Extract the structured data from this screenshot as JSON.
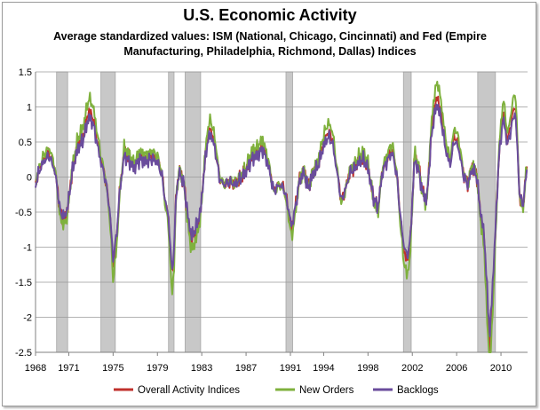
{
  "chart_data": {
    "type": "line",
    "title": "U.S. Economic Activity",
    "subtitle": "Average standardized values: ISM (National, Chicago, Cincinnati) and Fed (Empire Manufacturing, Philadelphia, Richmond, Dallas) Indices",
    "xlabel": "",
    "ylabel": "",
    "xlim": [
      1968,
      2012.4
    ],
    "ylim": [
      -2.5,
      1.5
    ],
    "xticks": [
      1968,
      1971,
      1975,
      1979,
      1983,
      1987,
      1991,
      1994,
      1998,
      2002,
      2006,
      2010
    ],
    "yticks": [
      -2.5,
      -2,
      -1.5,
      -1,
      -0.5,
      0,
      0.5,
      1,
      1.5
    ],
    "ytick_labels": [
      "-2.5",
      "-2",
      "-1.5",
      "-1",
      "-0.5",
      "0",
      "0.5",
      "1",
      "1.5"
    ],
    "grid": "horizontal",
    "legend": "bottom",
    "recessions": [
      [
        1969.9,
        1970.9
      ],
      [
        1973.9,
        1975.2
      ],
      [
        1980.0,
        1980.5
      ],
      [
        1981.5,
        1982.9
      ],
      [
        1990.6,
        1991.2
      ],
      [
        2001.2,
        2001.9
      ],
      [
        2007.9,
        2009.5
      ]
    ],
    "anchors": [
      [
        1968.0,
        -0.1
      ],
      [
        1968.3,
        0.1
      ],
      [
        1968.7,
        0.25
      ],
      [
        1969.2,
        0.35
      ],
      [
        1969.6,
        0.2
      ],
      [
        1969.9,
        -0.05
      ],
      [
        1970.2,
        -0.5
      ],
      [
        1970.6,
        -0.6
      ],
      [
        1970.9,
        -0.45
      ],
      [
        1971.3,
        0.1
      ],
      [
        1971.8,
        0.45
      ],
      [
        1972.3,
        0.6
      ],
      [
        1972.8,
        0.95
      ],
      [
        1973.2,
        0.85
      ],
      [
        1973.6,
        0.5
      ],
      [
        1973.9,
        0.25
      ],
      [
        1974.3,
        0.0
      ],
      [
        1974.7,
        -0.5
      ],
      [
        1975.0,
        -1.25
      ],
      [
        1975.3,
        -0.9
      ],
      [
        1975.6,
        -0.2
      ],
      [
        1976.0,
        0.35
      ],
      [
        1976.5,
        0.25
      ],
      [
        1976.9,
        0.15
      ],
      [
        1977.4,
        0.3
      ],
      [
        1977.9,
        0.25
      ],
      [
        1978.5,
        0.3
      ],
      [
        1979.0,
        0.25
      ],
      [
        1979.4,
        0.05
      ],
      [
        1979.7,
        -0.35
      ],
      [
        1980.0,
        -0.6
      ],
      [
        1980.3,
        -1.45
      ],
      [
        1980.5,
        -1.1
      ],
      [
        1980.7,
        -0.2
      ],
      [
        1981.0,
        0.1
      ],
      [
        1981.4,
        -0.1
      ],
      [
        1981.8,
        -0.65
      ],
      [
        1982.1,
        -0.9
      ],
      [
        1982.5,
        -0.75
      ],
      [
        1982.9,
        -0.5
      ],
      [
        1983.2,
        0.1
      ],
      [
        1983.5,
        0.55
      ],
      [
        1983.8,
        0.7
      ],
      [
        1984.2,
        0.45
      ],
      [
        1984.6,
        0.0
      ],
      [
        1985.0,
        -0.1
      ],
      [
        1985.5,
        -0.05
      ],
      [
        1986.0,
        -0.1
      ],
      [
        1986.5,
        0.0
      ],
      [
        1987.0,
        0.1
      ],
      [
        1987.5,
        0.3
      ],
      [
        1988.0,
        0.35
      ],
      [
        1988.5,
        0.45
      ],
      [
        1989.0,
        0.2
      ],
      [
        1989.5,
        -0.2
      ],
      [
        1990.0,
        -0.1
      ],
      [
        1990.4,
        -0.15
      ],
      [
        1990.8,
        -0.45
      ],
      [
        1991.1,
        -0.75
      ],
      [
        1991.4,
        -0.5
      ],
      [
        1991.8,
        -0.05
      ],
      [
        1992.2,
        0.1
      ],
      [
        1992.6,
        -0.15
      ],
      [
        1993.0,
        0.05
      ],
      [
        1993.5,
        0.2
      ],
      [
        1994.0,
        0.5
      ],
      [
        1994.4,
        0.65
      ],
      [
        1994.8,
        0.55
      ],
      [
        1995.2,
        0.1
      ],
      [
        1995.6,
        -0.35
      ],
      [
        1996.0,
        -0.15
      ],
      [
        1996.4,
        0.1
      ],
      [
        1996.8,
        0.15
      ],
      [
        1997.2,
        0.25
      ],
      [
        1997.6,
        0.3
      ],
      [
        1998.0,
        0.15
      ],
      [
        1998.5,
        -0.3
      ],
      [
        1998.9,
        -0.45
      ],
      [
        1999.3,
        0.1
      ],
      [
        1999.8,
        0.3
      ],
      [
        2000.2,
        0.4
      ],
      [
        2000.6,
        0.05
      ],
      [
        2000.9,
        -0.55
      ],
      [
        2001.2,
        -1.0
      ],
      [
        2001.5,
        -1.2
      ],
      [
        2001.8,
        -1.0
      ],
      [
        2002.2,
        0.3
      ],
      [
        2002.6,
        0.1
      ],
      [
        2002.9,
        -0.2
      ],
      [
        2003.3,
        -0.35
      ],
      [
        2003.7,
        0.6
      ],
      [
        2004.0,
        1.0
      ],
      [
        2004.3,
        1.15
      ],
      [
        2004.7,
        0.8
      ],
      [
        2005.0,
        0.45
      ],
      [
        2005.4,
        0.2
      ],
      [
        2005.8,
        0.6
      ],
      [
        2006.2,
        0.45
      ],
      [
        2006.6,
        0.05
      ],
      [
        2007.0,
        -0.1
      ],
      [
        2007.4,
        0.15
      ],
      [
        2007.8,
        0.05
      ],
      [
        2008.1,
        -0.45
      ],
      [
        2008.5,
        -0.9
      ],
      [
        2008.8,
        -1.9
      ],
      [
        2009.0,
        -2.4
      ],
      [
        2009.2,
        -1.8
      ],
      [
        2009.5,
        -0.8
      ],
      [
        2009.8,
        0.3
      ],
      [
        2010.2,
        0.95
      ],
      [
        2010.6,
        0.5
      ],
      [
        2011.0,
        0.85
      ],
      [
        2011.3,
        1.05
      ],
      [
        2011.7,
        -0.3
      ],
      [
        2012.0,
        -0.4
      ],
      [
        2012.3,
        0.1
      ]
    ],
    "series": [
      {
        "name": "Overall Activity Indices",
        "color": "#c0302c"
      },
      {
        "name": "New Orders",
        "color": "#7fb13d"
      },
      {
        "name": "Backlogs",
        "color": "#6a4c9c"
      }
    ]
  }
}
